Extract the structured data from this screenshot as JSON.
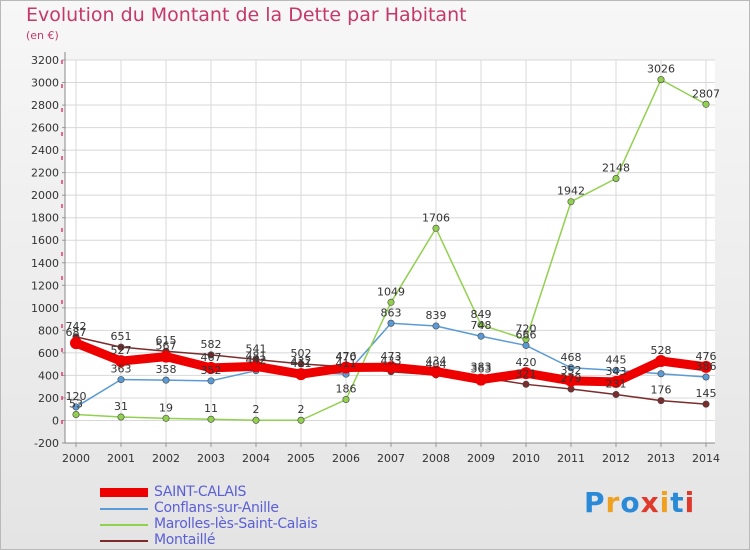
{
  "title": "Evolution du Montant de la Dette par Habitant",
  "subtitle": "(en €)",
  "logo": {
    "text": "Proxiti",
    "colors": [
      "#2b8ad8",
      "#f0a020",
      "#2b8ad8",
      "#e0392b",
      "#f0a020",
      "#2b8ad8",
      "#e0392b"
    ]
  },
  "chart_data": {
    "type": "line",
    "title": "Evolution du Montant de la Dette par Habitant",
    "subtitle": "(en €)",
    "xlabel": "",
    "ylabel": "",
    "ylim": [
      -200,
      3200
    ],
    "yticks": [
      -200,
      0,
      200,
      400,
      600,
      800,
      1000,
      1200,
      1400,
      1600,
      1800,
      2000,
      2200,
      2400,
      2600,
      2800,
      3000,
      3200
    ],
    "categories": [
      "2000",
      "2001",
      "2002",
      "2003",
      "2004",
      "2005",
      "2006",
      "2007",
      "2008",
      "2009",
      "2010",
      "2011",
      "2012",
      "2013",
      "2014"
    ],
    "grid": true,
    "legend_position": "bottom-left",
    "series": [
      {
        "name": "SAINT-CALAIS",
        "color": "#ee0000",
        "width": 9,
        "values": [
          687,
          527,
          567,
          467,
          481,
          411,
          470,
          473,
          434,
          363,
          420,
          352,
          343,
          528,
          476
        ]
      },
      {
        "name": "Conflans-sur-Anille",
        "color": "#5b9bd5",
        "width": 1.5,
        "values": [
          120,
          363,
          358,
          352,
          442,
          432,
          411,
          863,
          839,
          748,
          666,
          468,
          445,
          415,
          386
        ]
      },
      {
        "name": "Marolles-lès-Saint-Calais",
        "color": "#92d050",
        "width": 1.5,
        "values": [
          53,
          31,
          19,
          11,
          2,
          2,
          186,
          1049,
          1706,
          849,
          720,
          1942,
          2148,
          3026,
          2807
        ]
      },
      {
        "name": "Montaillé",
        "color": "#7b2c2c",
        "width": 1.5,
        "values": [
          742,
          651,
          615,
          582,
          541,
          502,
          476,
          433,
          404,
          383,
          321,
          279,
          231,
          176,
          145
        ]
      }
    ],
    "data_labels": [
      [
        687,
        527,
        567,
        467,
        481,
        411,
        470,
        473,
        434,
        363,
        420,
        352,
        343,
        528,
        476
      ],
      [
        120,
        363,
        358,
        352,
        442,
        432,
        411,
        863,
        839,
        748,
        666,
        468,
        445,
        null,
        386
      ],
      [
        53,
        31,
        19,
        11,
        2,
        2,
        186,
        1049,
        1706,
        849,
        720,
        1942,
        2148,
        3026,
        2807
      ],
      [
        742,
        651,
        615,
        582,
        541,
        502,
        476,
        433,
        404,
        383,
        321,
        279,
        231,
        176,
        145
      ]
    ]
  }
}
